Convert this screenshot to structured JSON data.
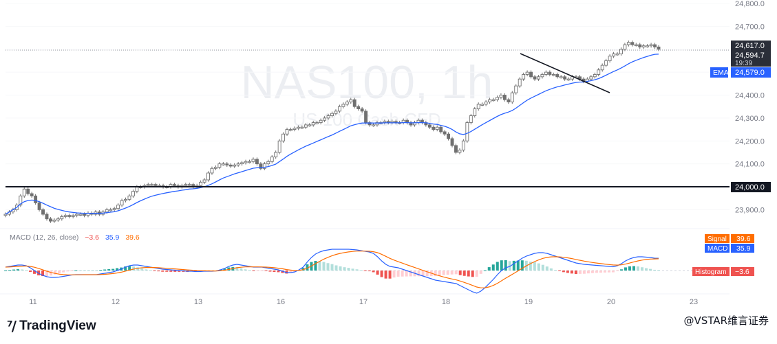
{
  "watermark": {
    "symbol": "NAS100, 1h",
    "subtitle": "US 100 Cash CFD"
  },
  "indicator": {
    "macd_title": "MACD (12, 26, close)",
    "hist_value": "−3.6",
    "macd_value": "35.9",
    "signal_value": "39.6"
  },
  "price_scale_labels": [
    {
      "label": "Signal",
      "value": "39.6"
    },
    {
      "label": "MACD",
      "value": "35.9"
    },
    {
      "label": "Histogram",
      "value": "−3.6"
    }
  ],
  "price_tags": {
    "last_price": "24,617.0",
    "current": "24,594.7",
    "countdown": "19:39",
    "ema_label": "EMA",
    "ema_value": "24,579.0",
    "level_value": "24,000.0"
  },
  "footer": {
    "brand": "TradingView",
    "credit": "@VSTAR维言证券"
  },
  "colors": {
    "candle": "#707070",
    "ema": "#2962ff",
    "macd": "#2962ff",
    "signal": "#ff6d00",
    "hist_pos_strong": "#26a69a",
    "hist_pos_weak": "#b2dfdb",
    "hist_neg_strong": "#ef5350",
    "hist_neg_weak": "#ffcdd2"
  },
  "chart_data": [
    {
      "type": "candlestick",
      "title": "NAS100, 1h",
      "subtitle": "US 100 Cash CFD",
      "x_tick_labels": [
        "11",
        "12",
        "13",
        "16",
        "17",
        "18",
        "19",
        "20",
        "23"
      ],
      "y_ticks": [
        23900,
        24000,
        24100,
        24200,
        24300,
        24400,
        24500,
        24600,
        24700,
        24800
      ],
      "ylim": [
        23820,
        24820
      ],
      "horizontal_level": 24000,
      "trendline": {
        "from_close": 24555,
        "to_close": 24415
      },
      "candles_close": [
        23880,
        23890,
        23900,
        23920,
        23960,
        23990,
        23970,
        23960,
        23930,
        23900,
        23880,
        23860,
        23850,
        23855,
        23860,
        23870,
        23875,
        23870,
        23875,
        23880,
        23880,
        23875,
        23885,
        23880,
        23890,
        23880,
        23890,
        23900,
        23900,
        23905,
        23920,
        23940,
        23945,
        23960,
        23980,
        24000,
        24000,
        24005,
        24010,
        24010,
        24005,
        24005,
        24000,
        24000,
        24010,
        24005,
        24000,
        24005,
        24010,
        24010,
        24000,
        24005,
        24020,
        24030,
        24060,
        24080,
        24085,
        24100,
        24100,
        24095,
        24090,
        24095,
        24100,
        24105,
        24110,
        24110,
        24120,
        24100,
        24080,
        24100,
        24110,
        24130,
        24150,
        24200,
        24230,
        24250,
        24250,
        24255,
        24260,
        24260,
        24270,
        24270,
        24280,
        24280,
        24290,
        24300,
        24310,
        24320,
        24330,
        24350,
        24360,
        24370,
        24380,
        24350,
        24340,
        24330,
        24280,
        24270,
        24270,
        24280,
        24280,
        24285,
        24280,
        24285,
        24280,
        24280,
        24290,
        24280,
        24270,
        24280,
        24290,
        24280,
        24270,
        24260,
        24250,
        24260,
        24240,
        24230,
        24210,
        24180,
        24150,
        24160,
        24200,
        24280,
        24310,
        24340,
        24360,
        24360,
        24370,
        24380,
        24380,
        24390,
        24400,
        24380,
        24370,
        24410,
        24440,
        24470,
        24490,
        24500,
        24480,
        24470,
        24480,
        24490,
        24500,
        24490,
        24490,
        24480,
        24480,
        24470,
        24470,
        24480,
        24480,
        24470,
        24460,
        24470,
        24480,
        24490,
        24510,
        24530,
        24550,
        24570,
        24580,
        24580,
        24600,
        24620,
        24630,
        24620,
        24620,
        24610,
        24615,
        24615,
        24620,
        24610,
        24600
      ],
      "ema_close": [
        23880,
        23890,
        23900,
        23910,
        23925,
        23935,
        23940,
        23942,
        23940,
        23935,
        23928,
        23920,
        23913,
        23906,
        23901,
        23897,
        23893,
        23890,
        23888,
        23886,
        23885,
        23884,
        23884,
        23884,
        23884,
        23884,
        23885,
        23887,
        23889,
        23891,
        23895,
        23901,
        23907,
        23914,
        23922,
        23931,
        23939,
        23946,
        23953,
        23959,
        23963,
        23967,
        23971,
        23974,
        23977,
        23980,
        23982,
        23985,
        23987,
        23990,
        23991,
        23993,
        23996,
        24000,
        24006,
        24013,
        24021,
        24030,
        24038,
        24044,
        24050,
        24056,
        24061,
        24066,
        24071,
        24076,
        24081,
        24083,
        24083,
        24085,
        24088,
        24093,
        24099,
        24110,
        24121,
        24133,
        24143,
        24152,
        24161,
        24169,
        24177,
        24184,
        24191,
        24198,
        24205,
        24212,
        24219,
        24226,
        24234,
        24242,
        24250,
        24258,
        24266,
        24271,
        24275,
        24278,
        24278,
        24278,
        24278,
        24278,
        24278,
        24279,
        24279,
        24279,
        24279,
        24279,
        24280,
        24280,
        24279,
        24279,
        24280,
        24280,
        24279,
        24277,
        24274,
        24272,
        24268,
        24264,
        24258,
        24250,
        24239,
        24231,
        24228,
        24233,
        24241,
        24251,
        24261,
        24271,
        24280,
        24289,
        24298,
        24307,
        24315,
        24321,
        24326,
        24333,
        24343,
        24355,
        24367,
        24378,
        24387,
        24395,
        24403,
        24411,
        24419,
        24425,
        24431,
        24436,
        24440,
        24444,
        24448,
        24452,
        24455,
        24457,
        24457,
        24460,
        24463,
        24467,
        24472,
        24479,
        24487,
        24495,
        24503,
        24510,
        24518,
        24527,
        24537,
        24545,
        24552,
        24558,
        24564,
        24569,
        24574,
        24578,
        24579
      ]
    },
    {
      "type": "macd",
      "title": "MACD (12, 26, close)",
      "series": [
        {
          "name": "MACD",
          "last": 35.9
        },
        {
          "name": "Signal",
          "last": 39.6
        },
        {
          "name": "Histogram",
          "last": -3.6
        }
      ],
      "macd": [
        10,
        12,
        14,
        16,
        16,
        14,
        8,
        0,
        -8,
        -14,
        -18,
        -20,
        -20,
        -19,
        -17,
        -15,
        -13,
        -12,
        -12,
        -12,
        -12,
        -12,
        -12,
        -10,
        -8,
        -6,
        -4,
        0,
        4,
        10,
        14,
        16,
        16,
        14,
        12,
        10,
        8,
        6,
        4,
        3,
        2,
        1,
        0,
        -1,
        -2,
        -2,
        -3,
        -3,
        -2,
        -2,
        -2,
        -1,
        2,
        6,
        12,
        16,
        18,
        16,
        14,
        12,
        10,
        10,
        10,
        8,
        6,
        4,
        2,
        -2,
        -6,
        -6,
        -4,
        2,
        10,
        25,
        38,
        48,
        54,
        58,
        60,
        62,
        62,
        62,
        62,
        62,
        61,
        60,
        58,
        56,
        54,
        50,
        40,
        28,
        18,
        12,
        10,
        8,
        4,
        0,
        -4,
        -8,
        -12,
        -16,
        -20,
        -24,
        -28,
        -30,
        -32,
        -34,
        -36,
        -38,
        -44,
        -50,
        -56,
        -62,
        -66,
        -60,
        -50,
        -38,
        -26,
        -12,
        0,
        8,
        12,
        20,
        28,
        36,
        42,
        46,
        50,
        52,
        52,
        50,
        46,
        42,
        38,
        34,
        30,
        26,
        22,
        20,
        18,
        17,
        16,
        15,
        14,
        13,
        12,
        11,
        14,
        20,
        28,
        34,
        38,
        40,
        40,
        39,
        38,
        36,
        35.9
      ]
    }
  ]
}
